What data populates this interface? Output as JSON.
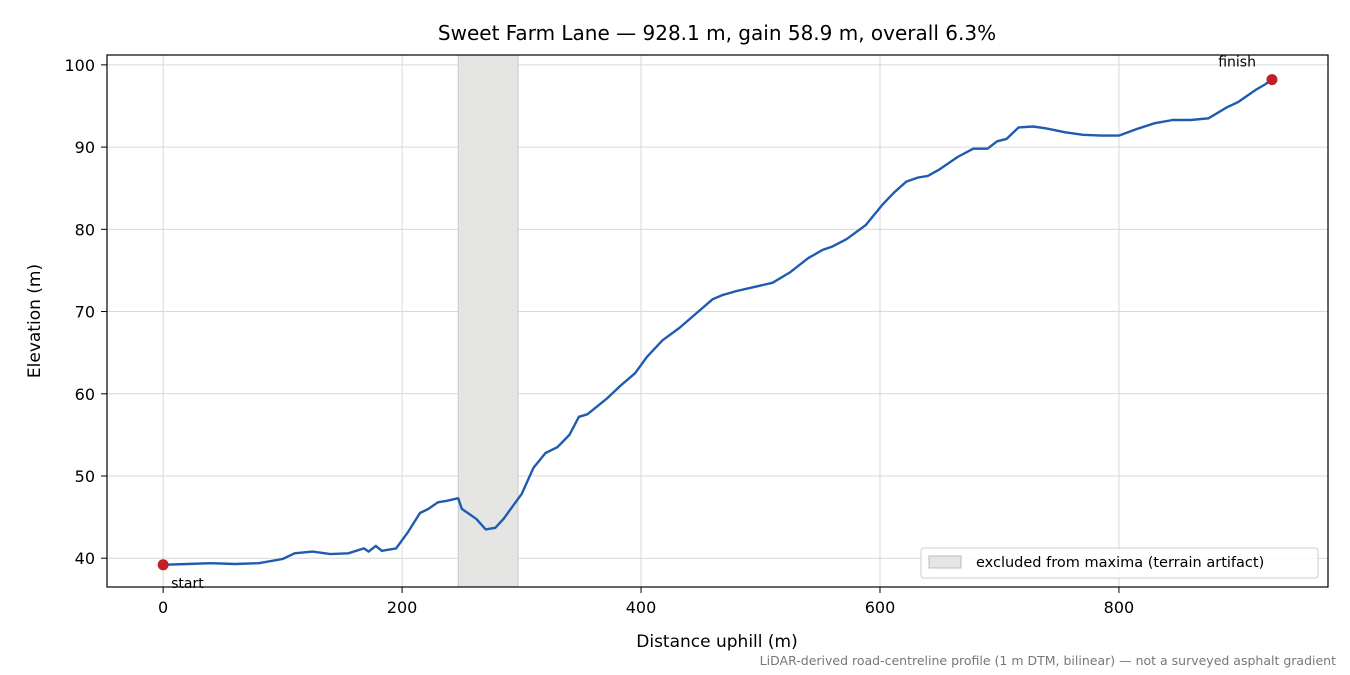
{
  "chart_data": {
    "type": "line",
    "title": "Sweet Farm Lane — 928.1 m, gain 58.9 m, overall 6.3%",
    "xlabel": "Distance uphill (m)",
    "ylabel": "Elevation (m)",
    "xlim": [
      -47,
      975
    ],
    "ylim": [
      36.5,
      101.2
    ],
    "grid": true,
    "x_ticks": [
      0,
      200,
      400,
      600,
      800
    ],
    "y_ticks": [
      40,
      50,
      60,
      70,
      80,
      90,
      100
    ],
    "line_color": "#1f5bb0",
    "marker_color": "#c41e2a",
    "shade_color": "#e5e5e3",
    "excluded_range": [
      247,
      297
    ],
    "legend": {
      "label": "excluded from maxima (terrain artifact)",
      "placement": "lower-right"
    },
    "footnote": "LiDAR-derived road-centreline profile (1 m DTM, bilinear) — not a surveyed asphalt gradient",
    "markers": [
      {
        "label": "start",
        "x": 0,
        "y": 39.2
      },
      {
        "label": "finish",
        "x": 928.1,
        "y": 98.2
      }
    ],
    "series": [
      {
        "x": [
          0,
          20,
          40,
          60,
          80,
          100,
          110,
          125,
          140,
          155,
          168,
          172,
          178,
          183,
          195,
          205,
          215,
          222,
          230,
          238,
          247,
          250,
          255,
          262,
          270,
          278,
          285,
          292,
          300,
          310,
          320,
          330,
          340,
          348,
          355,
          362,
          372,
          383,
          395,
          405,
          418,
          432,
          448,
          460,
          468,
          480,
          495,
          510,
          525,
          540,
          552,
          560,
          572,
          588,
          602,
          612,
          622,
          632,
          640,
          650,
          665,
          678,
          690,
          698,
          706,
          716,
          728,
          738,
          745,
          755,
          770,
          785,
          800,
          815,
          830,
          845,
          860,
          875,
          890,
          900,
          910,
          915,
          922,
          928.1
        ],
        "y": [
          39.2,
          39.3,
          39.4,
          39.3,
          39.4,
          39.9,
          40.6,
          40.8,
          40.5,
          40.6,
          41.2,
          40.8,
          41.5,
          40.9,
          41.2,
          43.2,
          45.5,
          46.0,
          46.8,
          47.0,
          47.3,
          46.0,
          45.5,
          44.8,
          43.5,
          43.7,
          44.8,
          46.2,
          47.8,
          51.0,
          52.8,
          53.5,
          55.0,
          57.2,
          57.5,
          58.3,
          59.5,
          61.0,
          62.5,
          64.5,
          66.5,
          68.0,
          70.0,
          71.5,
          72.0,
          72.5,
          73.0,
          73.5,
          74.8,
          76.5,
          77.5,
          77.9,
          78.8,
          80.5,
          83.0,
          84.5,
          85.8,
          86.3,
          86.5,
          87.3,
          88.8,
          89.8,
          89.8,
          90.7,
          91.0,
          92.4,
          92.5,
          92.3,
          92.1,
          91.8,
          91.5,
          91.4,
          91.4,
          92.2,
          92.9,
          93.3,
          93.3,
          93.5,
          94.8,
          95.5,
          96.5,
          97.0,
          97.6,
          98.2
        ]
      }
    ]
  }
}
